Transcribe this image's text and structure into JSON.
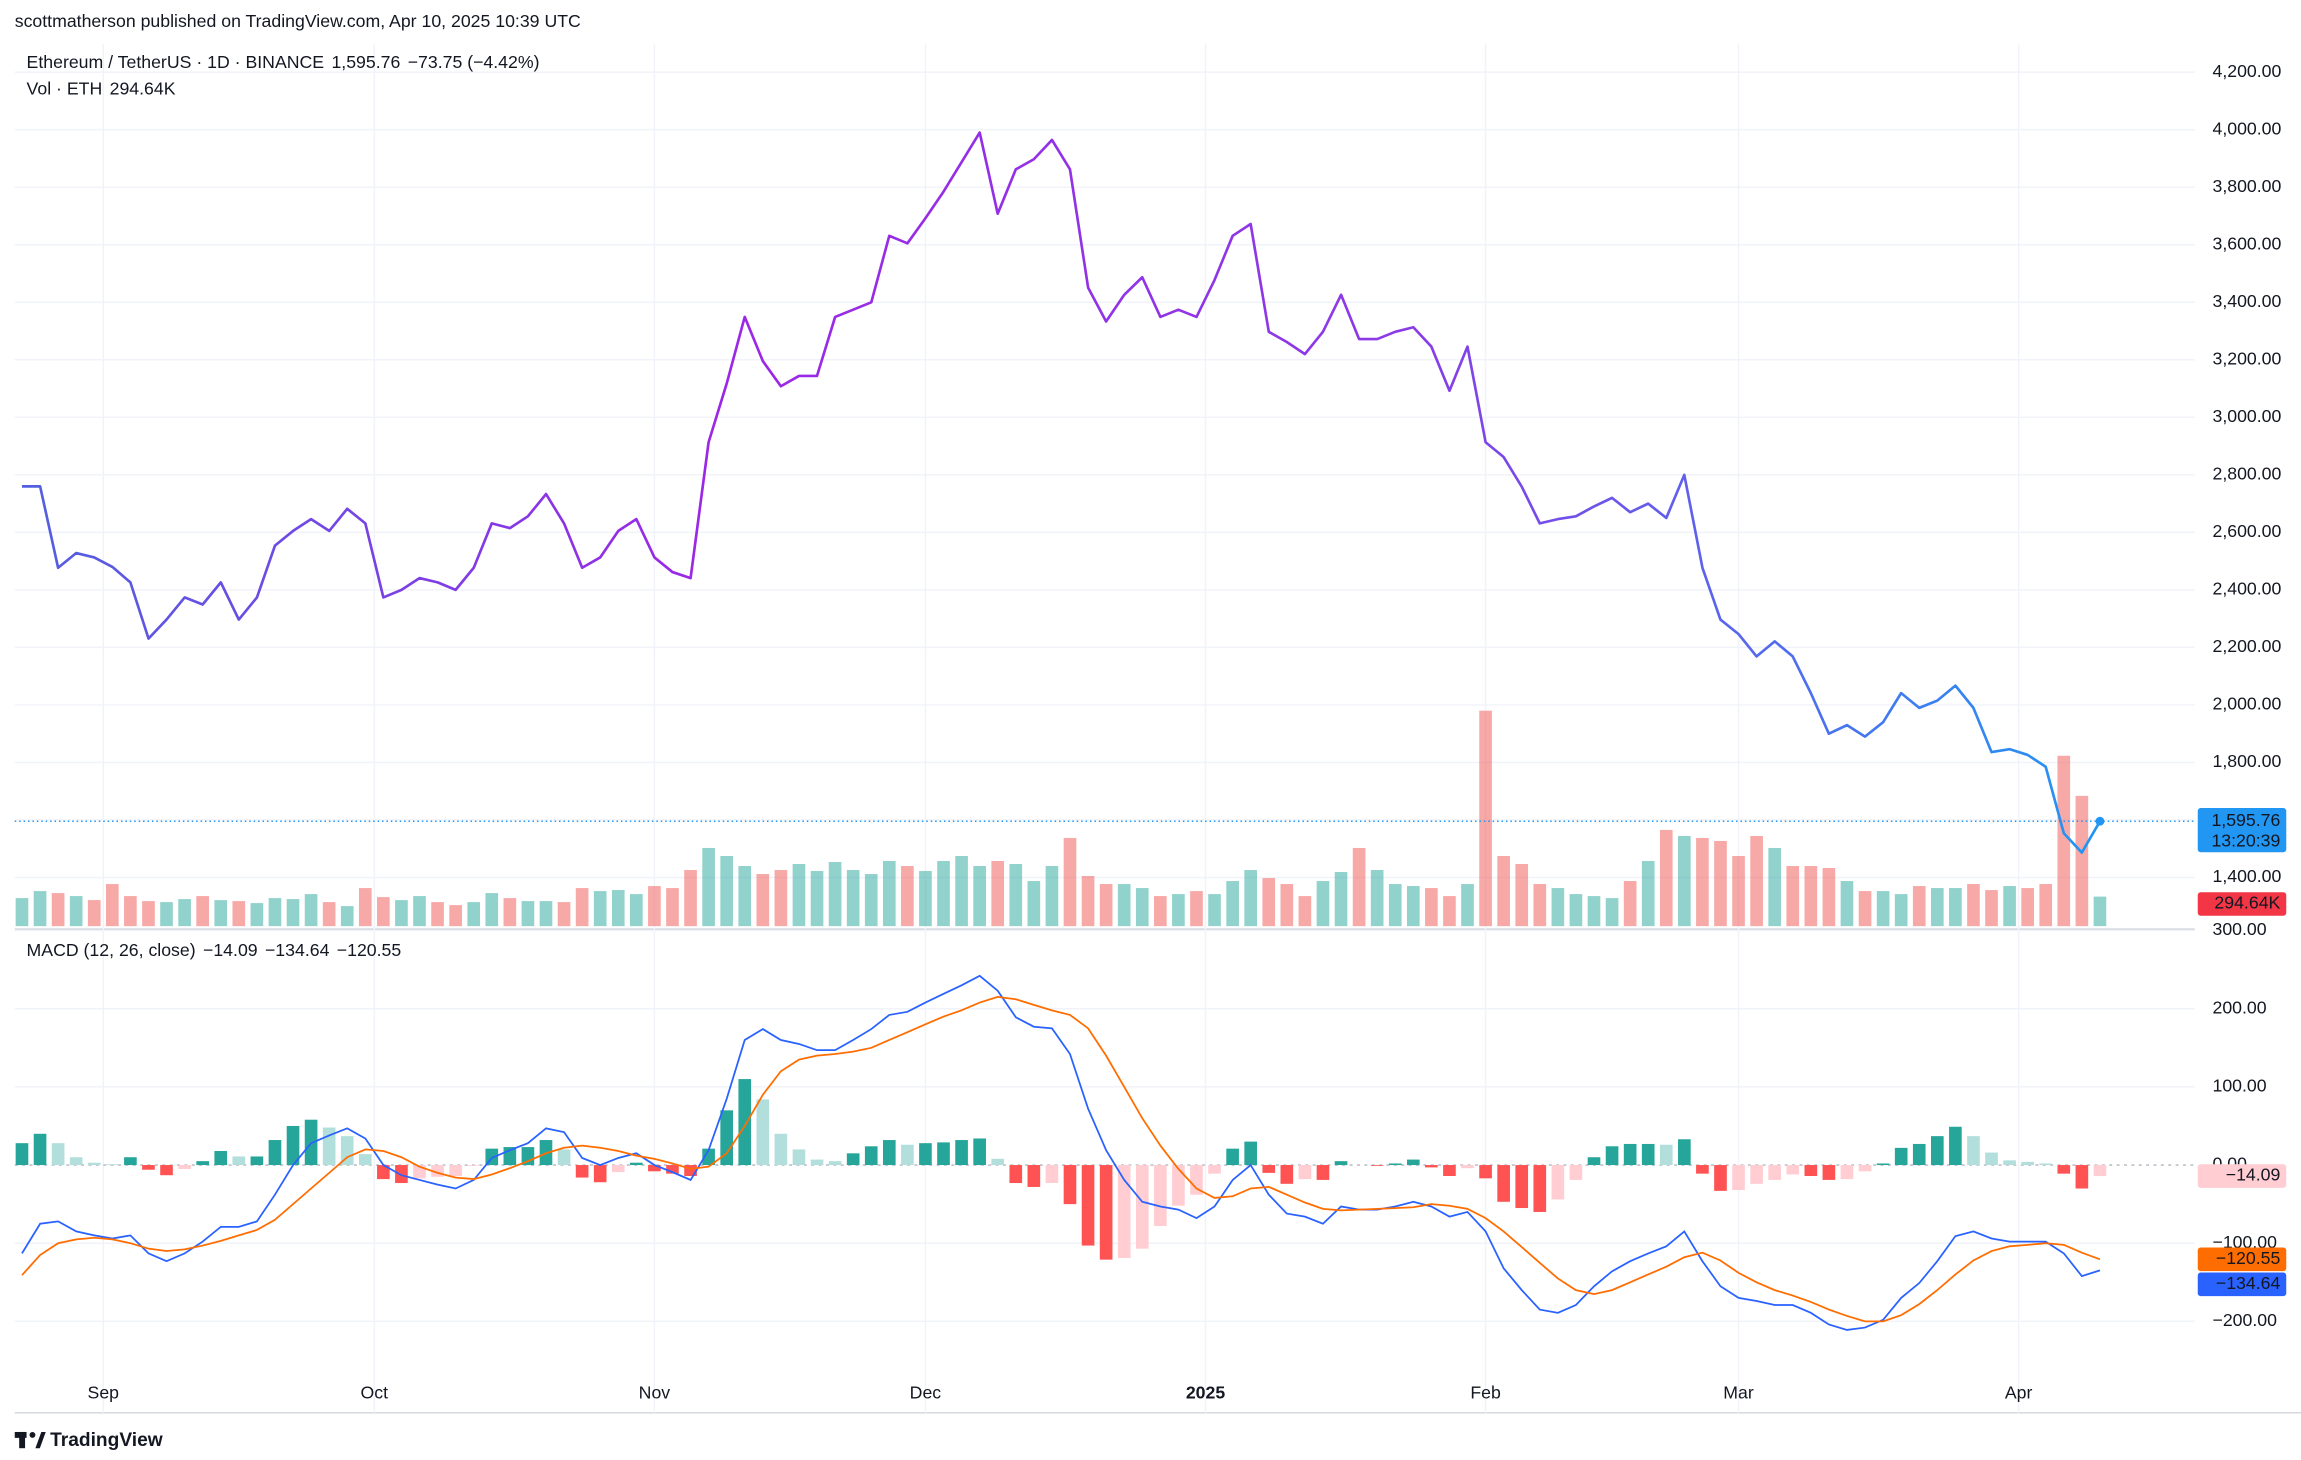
{
  "header": {
    "byline": "scottmatherson published on TradingView.com, Apr 10, 2025 10:39 UTC",
    "countdown": "13:20:39"
  },
  "footer": {
    "brand": "TradingView"
  },
  "chart_data": [
    {
      "type": "line",
      "x": [
        -9,
        -7,
        -5,
        -3,
        -1,
        1,
        3,
        5,
        7,
        9,
        11,
        13,
        15,
        17,
        19,
        21,
        23,
        25,
        27,
        29,
        31,
        33,
        35,
        37,
        39,
        41,
        43,
        45,
        47,
        49,
        51,
        53,
        55,
        57,
        59,
        61,
        63,
        65,
        67,
        69,
        71,
        73,
        75,
        77,
        79,
        81,
        83,
        85,
        87,
        89,
        91,
        93,
        95,
        97,
        99,
        101,
        103,
        105,
        107,
        109,
        111,
        113,
        115,
        117,
        119,
        121,
        123,
        125,
        127,
        129,
        131,
        133,
        135,
        137,
        139,
        141,
        143,
        145,
        147,
        149,
        151,
        153,
        155,
        157,
        159,
        161,
        163,
        165,
        167,
        169,
        171,
        173,
        175,
        177,
        179,
        181,
        183,
        185,
        187,
        189,
        191,
        193,
        195,
        197,
        199,
        201,
        203,
        205,
        207,
        209,
        211,
        213,
        215,
        217,
        219,
        221
      ],
      "xlim": [
        -9.8,
        231.5
      ],
      "xticks": [
        {
          "value": 0,
          "label": "Sep"
        },
        {
          "value": 30,
          "label": "Oct"
        },
        {
          "value": 61,
          "label": "Nov"
        },
        {
          "value": 91,
          "label": "Dec"
        },
        {
          "value": 122,
          "label": "2025"
        },
        {
          "value": 153,
          "label": "Feb"
        },
        {
          "value": 181,
          "label": "Mar"
        },
        {
          "value": 212,
          "label": "Apr"
        }
      ],
      "ylim": [
        1231,
        4297
      ],
      "yticks": [
        {
          "value": 1400,
          "label": "1,400.00"
        },
        {
          "value": 1600,
          "label": "1,600.00"
        },
        {
          "value": 1800,
          "label": "1,800.00"
        },
        {
          "value": 2000,
          "label": "2,000.00"
        },
        {
          "value": 2200,
          "label": "2,200.00"
        },
        {
          "value": 2400,
          "label": "2,400.00"
        },
        {
          "value": 2600,
          "label": "2,600.00"
        },
        {
          "value": 2800,
          "label": "2,800.00"
        },
        {
          "value": 3000,
          "label": "3,000.00"
        },
        {
          "value": 3200,
          "label": "3,200.00"
        },
        {
          "value": 3400,
          "label": "3,400.00"
        },
        {
          "value": 3600,
          "label": "3,600.00"
        },
        {
          "value": 3800,
          "label": "3,800.00"
        },
        {
          "value": 4000,
          "label": "4,000.00"
        },
        {
          "value": 4200,
          "label": "4,200.00"
        }
      ],
      "y2lim": [
        0,
        8800
      ],
      "grid": true,
      "change": "−73.75 (−4.42%)",
      "series": [
        {
          "name": "Ethereum / TetherUS · 1D · BINANCE",
          "colors": [
            "#5161e0",
            "#9c27e6",
            "#8a3be6",
            "#2196f3"
          ],
          "values": [
            2760,
            2760,
            2477,
            2528,
            2513,
            2480,
            2426,
            2231,
            2297,
            2374,
            2349,
            2426,
            2297,
            2374,
            2554,
            2605,
            2646,
            2605,
            2682,
            2631,
            2374,
            2400,
            2441,
            2426,
            2400,
            2477,
            2631,
            2615,
            2656,
            2733,
            2631,
            2477,
            2513,
            2605,
            2646,
            2513,
            2462,
            2441,
            2913,
            3118,
            3349,
            3195,
            3108,
            3144,
            3144,
            3349,
            3374,
            3400,
            3631,
            3605,
            3692,
            3785,
            3887,
            3990,
            3708,
            3862,
            3897,
            3964,
            3862,
            3451,
            3333,
            3426,
            3487,
            3349,
            3374,
            3349,
            3477,
            3631,
            3672,
            3297,
            3262,
            3220,
            3297,
            3426,
            3272,
            3272,
            3297,
            3313,
            3246,
            3092,
            3246,
            2913,
            2862,
            2759,
            2631,
            2646,
            2656,
            2690,
            2720,
            2670,
            2700,
            2650,
            2800,
            2477,
            2297,
            2246,
            2169,
            2221,
            2169,
            2041,
            1900,
            1930,
            1890,
            1940,
            2041,
            1990,
            2015,
            2067,
            1990,
            1836,
            1846,
            1826,
            1785,
            1554,
            1487,
            1595.76
          ],
          "value_labels": {
            "115": "1,595.76"
          }
        },
        {
          "name": "Vol · ETH",
          "type": "bar",
          "axis": "y2",
          "colors": [
            "rgba(38,166,154,0.5)",
            "rgba(239,83,80,0.5)"
          ],
          "values": [
            280,
            350,
            330,
            300,
            260,
            420,
            300,
            250,
            240,
            270,
            300,
            260,
            250,
            230,
            280,
            270,
            320,
            240,
            200,
            380,
            290,
            260,
            300,
            240,
            210,
            240,
            330,
            280,
            250,
            250,
            240,
            380,
            350,
            360,
            320,
            400,
            380,
            560,
            780,
            700,
            600,
            520,
            560,
            620,
            550,
            640,
            560,
            520,
            650,
            600,
            550,
            650,
            700,
            600,
            650,
            620,
            450,
            600,
            880,
            500,
            420,
            420,
            380,
            300,
            320,
            350,
            320,
            450,
            560,
            480,
            420,
            300,
            450,
            540,
            780,
            560,
            420,
            400,
            380,
            300,
            420,
            2150,
            700,
            620,
            420,
            380,
            320,
            300,
            280,
            450,
            650,
            960,
            900,
            880,
            850,
            700,
            900,
            780,
            600,
            600,
            580,
            450,
            350,
            350,
            320,
            400,
            380,
            380,
            420,
            360,
            400,
            380,
            420,
            1700,
            1300,
            294.64
          ],
          "value_labels": {
            "115": "294.64K"
          }
        }
      ]
    },
    {
      "type": "line",
      "title": "MACD (12, 26, close)",
      "ylim": [
        -320,
        300
      ],
      "yticks": [
        {
          "value": -200,
          "label": "−200.00"
        },
        {
          "value": -100,
          "label": "−100.00"
        },
        {
          "value": 0,
          "label": "0.00"
        },
        {
          "value": 100,
          "label": "100.00"
        },
        {
          "value": 200,
          "label": "200.00"
        },
        {
          "value": 300,
          "label": "300.00"
        }
      ],
      "grid": true,
      "series": [
        {
          "type": "bar",
          "colors": [
            "#26a69a",
            "#b2dfdb",
            "#ff5252",
            "#ffcdd2"
          ],
          "values": [
            28,
            40,
            28,
            10,
            3,
            1,
            10,
            -6,
            -13,
            -5,
            5,
            18,
            11,
            11,
            32,
            50,
            58,
            48,
            37,
            14,
            -18,
            -23,
            -17,
            -15,
            -14,
            -1,
            21,
            23,
            23,
            32,
            20,
            -16,
            -22,
            -9,
            3,
            -8,
            -11,
            -14,
            21,
            70,
            110,
            84,
            40,
            20,
            7,
            5,
            15,
            24,
            32,
            26,
            28,
            29,
            32,
            34,
            8,
            -23,
            -28,
            -23,
            -50,
            -103,
            -121,
            -119,
            -107,
            -78,
            -52,
            -38,
            -11,
            21,
            30,
            -10,
            -24,
            -18,
            -19,
            5,
            0,
            -1,
            2,
            7,
            -3,
            -14,
            -4,
            -17,
            -47,
            -55,
            -60,
            -44,
            -19,
            10,
            24,
            27,
            27,
            26,
            33,
            -11,
            -33,
            -32,
            -24,
            -19,
            -12,
            -14,
            -19,
            -18,
            -8,
            2,
            22,
            27,
            37,
            49,
            37,
            16,
            6,
            4,
            2,
            -11,
            -30,
            -14.09
          ],
          "value_labels": {
            "115": "−14.09"
          }
        },
        {
          "color": "#2962ff",
          "values": [
            -113,
            -75,
            -72,
            -85,
            -90,
            -94,
            -90,
            -113,
            -123,
            -113,
            -98,
            -79,
            -79,
            -72,
            -38,
            0,
            28,
            38,
            47,
            34,
            0,
            -13,
            -19,
            -25,
            -30,
            -19,
            9,
            19,
            28,
            47,
            42,
            9,
            0,
            9,
            15,
            0,
            -9,
            -19,
            19,
            85,
            160,
            174,
            160,
            155,
            147,
            147,
            160,
            174,
            192,
            196,
            208,
            219,
            230,
            242,
            223,
            189,
            177,
            175,
            142,
            72,
            19,
            -19,
            -47,
            -53,
            -57,
            -68,
            -53,
            -19,
            0,
            -38,
            -62,
            -66,
            -75,
            -53,
            -57,
            -57,
            -53,
            -47,
            -53,
            -66,
            -60,
            -85,
            -132,
            -160,
            -185,
            -189,
            -179,
            -155,
            -136,
            -123,
            -113,
            -104,
            -85,
            -123,
            -155,
            -170,
            -174,
            -179,
            -179,
            -189,
            -204,
            -211,
            -208,
            -198,
            -170,
            -151,
            -123,
            -91,
            -85,
            -94,
            -98,
            -98,
            -98,
            -113,
            -142,
            -134.64
          ],
          "value_labels": {
            "115": "−134.64"
          }
        },
        {
          "color": "#ff6d00",
          "values": [
            -141,
            -115,
            -100,
            -95,
            -93,
            -95,
            -100,
            -107,
            -110,
            -108,
            -103,
            -97,
            -90,
            -83,
            -70,
            -50,
            -30,
            -10,
            10,
            20,
            18,
            10,
            -2,
            -10,
            -16,
            -18,
            -12,
            -4,
            5,
            15,
            22,
            25,
            22,
            18,
            12,
            8,
            2,
            -5,
            -2,
            15,
            50,
            90,
            120,
            135,
            140,
            142,
            145,
            150,
            160,
            170,
            180,
            190,
            198,
            208,
            215,
            212,
            205,
            198,
            192,
            175,
            140,
            100,
            60,
            25,
            -5,
            -30,
            -42,
            -40,
            -30,
            -28,
            -38,
            -48,
            -56,
            -58,
            -57,
            -56,
            -55,
            -54,
            -50,
            -52,
            -56,
            -68,
            -85,
            -105,
            -125,
            -145,
            -160,
            -165,
            -160,
            -150,
            -140,
            -130,
            -118,
            -112,
            -122,
            -138,
            -150,
            -160,
            -167,
            -175,
            -185,
            -193,
            -200,
            -200,
            -192,
            -178,
            -160,
            -140,
            -122,
            -110,
            -104,
            -102,
            -100,
            -102,
            -112,
            -120.55
          ],
          "value_labels": {
            "115": "−120.55"
          }
        }
      ]
    }
  ]
}
